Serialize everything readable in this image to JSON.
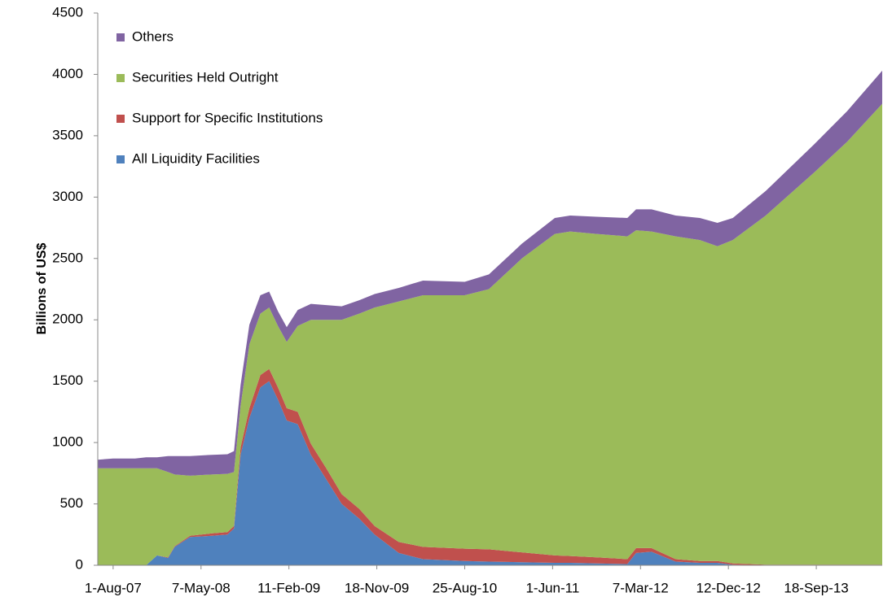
{
  "chart_data": {
    "type": "stacked_area",
    "y_label": "Billions of US$",
    "x": [
      -7,
      0,
      10,
      15,
      20,
      25,
      28,
      35,
      45,
      52,
      55,
      58,
      62,
      67,
      71,
      75,
      79,
      84,
      90,
      97,
      104,
      112,
      119,
      130,
      141,
      160,
      171,
      186,
      201,
      208,
      220,
      234,
      238,
      245,
      256,
      267,
      275,
      282,
      297,
      319,
      334,
      350
    ],
    "xlim": [
      -7,
      350
    ],
    "xticks": [
      {
        "value": 0,
        "label": "1-Aug-07"
      },
      {
        "value": 40,
        "label": "7-May-08"
      },
      {
        "value": 80,
        "label": "11-Feb-09"
      },
      {
        "value": 120,
        "label": "18-Nov-09"
      },
      {
        "value": 160,
        "label": "25-Aug-10"
      },
      {
        "value": 200,
        "label": "1-Jun-11"
      },
      {
        "value": 240,
        "label": "7-Mar-12"
      },
      {
        "value": 280,
        "label": "12-Dec-12"
      },
      {
        "value": 320,
        "label": "18-Sep-13"
      }
    ],
    "ylim": [
      0,
      4500
    ],
    "yticks": [
      0,
      500,
      1000,
      1500,
      2000,
      2500,
      3000,
      3500,
      4000,
      4500
    ],
    "grid": false,
    "legend": "top-left",
    "series": [
      {
        "name": "All Liquidity Facilities",
        "color": "#4f81bd",
        "values": [
          0,
          0,
          0,
          0,
          80,
          60,
          150,
          230,
          240,
          250,
          300,
          900,
          1200,
          1450,
          1500,
          1350,
          1180,
          1150,
          900,
          700,
          500,
          380,
          250,
          100,
          50,
          35,
          30,
          25,
          20,
          20,
          15,
          10,
          100,
          110,
          30,
          20,
          20,
          5,
          0,
          0,
          0,
          0
        ]
      },
      {
        "name": "Support for Specific Institutions",
        "color": "#c0504d",
        "values": [
          0,
          0,
          0,
          0,
          0,
          5,
          5,
          10,
          20,
          20,
          20,
          60,
          80,
          100,
          100,
          100,
          100,
          100,
          90,
          90,
          80,
          80,
          70,
          90,
          100,
          100,
          100,
          80,
          60,
          55,
          50,
          40,
          40,
          30,
          20,
          15,
          15,
          10,
          5,
          5,
          5,
          5
        ]
      },
      {
        "name": "Securities Held Outright",
        "color": "#9bbb59",
        "values": [
          790,
          790,
          790,
          790,
          710,
          695,
          585,
          490,
          480,
          475,
          440,
          340,
          520,
          500,
          500,
          500,
          540,
          700,
          1010,
          1210,
          1420,
          1590,
          1780,
          1960,
          2050,
          2065,
          2120,
          2395,
          2620,
          2645,
          2635,
          2630,
          2590,
          2580,
          2630,
          2615,
          2565,
          2635,
          2845,
          3195,
          3445,
          3755
        ]
      },
      {
        "name": "Others",
        "color": "#8064a2",
        "values": [
          70,
          80,
          80,
          90,
          90,
          130,
          150,
          160,
          160,
          160,
          170,
          170,
          160,
          150,
          130,
          120,
          120,
          130,
          130,
          120,
          110,
          110,
          110,
          110,
          120,
          110,
          120,
          120,
          130,
          130,
          140,
          150,
          170,
          180,
          170,
          180,
          190,
          180,
          200,
          230,
          250,
          270
        ]
      }
    ]
  }
}
